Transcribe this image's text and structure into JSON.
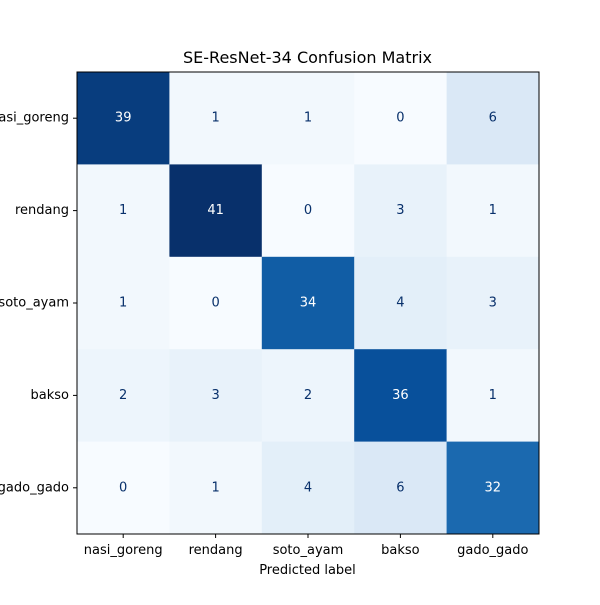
{
  "chart_data": {
    "type": "heatmap",
    "title": "SE-ResNet-34 Confusion Matrix",
    "xlabel": "Predicted label",
    "ylabel": "",
    "x_categories": [
      "nasi_goreng",
      "rendang",
      "soto_ayam",
      "bakso",
      "gado_gado"
    ],
    "y_categories": [
      "nasi_goreng",
      "rendang",
      "soto_ayam",
      "bakso",
      "gado_gado"
    ],
    "values": [
      [
        39,
        1,
        1,
        0,
        6
      ],
      [
        1,
        41,
        0,
        3,
        1
      ],
      [
        1,
        0,
        34,
        4,
        3
      ],
      [
        2,
        3,
        2,
        36,
        1
      ],
      [
        0,
        1,
        4,
        6,
        32
      ]
    ],
    "colormap": "Blues",
    "value_range": [
      0,
      41
    ],
    "grid": false,
    "colorbar": false
  }
}
